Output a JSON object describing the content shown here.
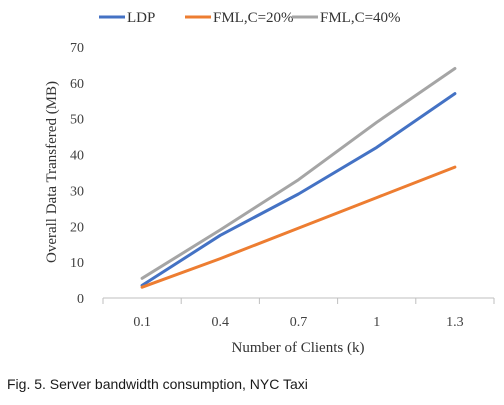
{
  "chart_data": {
    "type": "line",
    "title": "",
    "xlabel": "Number of Clients (k)",
    "ylabel": "Overall Data Transfered (MB)",
    "categories": [
      "0.1",
      "0.4",
      "0.7",
      "1",
      "1.3"
    ],
    "ylim": [
      0,
      70
    ],
    "yticks": [
      0,
      10,
      20,
      30,
      40,
      50,
      60,
      70
    ],
    "grid": false,
    "legend_position": "top",
    "series": [
      {
        "name": "LDP",
        "color": "#4472c4",
        "values": [
          3.5,
          17.5,
          29,
          42,
          57
        ]
      },
      {
        "name": "FML,C=20%",
        "color": "#ed7d31",
        "values": [
          3,
          11,
          19.5,
          28,
          36.5
        ]
      },
      {
        "name": "FML,C=40%",
        "color": "#a5a5a5",
        "values": [
          5.5,
          19,
          33,
          49,
          64
        ]
      }
    ]
  },
  "caption": "Fig. 5. Server bandwidth consumption, NYC Taxi"
}
